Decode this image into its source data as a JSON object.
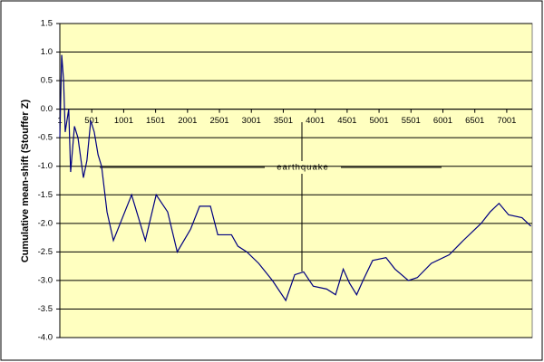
{
  "chart_data": {
    "type": "line",
    "y_label": "Cumulative mean-shift (Stouffer Z)",
    "annotation": "earthquake",
    "x": [
      1,
      30,
      60,
      85,
      140,
      170,
      230,
      285,
      370,
      425,
      485,
      540,
      600,
      655,
      740,
      840,
      1125,
      1340,
      1510,
      1690,
      1840,
      2050,
      2190,
      2360,
      2475,
      2690,
      2790,
      2930,
      3115,
      3330,
      3540,
      3680,
      3820,
      3970,
      4180,
      4320,
      4440,
      4540,
      4650,
      4750,
      4900,
      5110,
      5250,
      5460,
      5600,
      5820,
      6100,
      6320,
      6600,
      6740,
      6880,
      7030,
      7240,
      7380
    ],
    "series": [
      {
        "name": "Cumulative mean-shift",
        "color": "#000080",
        "values": [
          -0.5,
          0.95,
          0.5,
          -0.4,
          0.0,
          -1.1,
          -0.3,
          -0.5,
          -1.2,
          -0.9,
          -0.2,
          -0.4,
          -0.8,
          -1.0,
          -1.8,
          -2.3,
          -1.5,
          -2.3,
          -1.5,
          -1.8,
          -2.5,
          -2.1,
          -1.7,
          -1.7,
          -2.2,
          -2.2,
          -2.4,
          -2.5,
          -2.7,
          -3.0,
          -3.35,
          -2.9,
          -2.85,
          -3.1,
          -3.15,
          -3.25,
          -2.8,
          -3.05,
          -3.25,
          -3.0,
          -2.65,
          -2.6,
          -2.8,
          -3.0,
          -2.95,
          -2.7,
          -2.55,
          -2.3,
          -2.0,
          -1.8,
          -1.65,
          -1.85,
          -1.9,
          -2.05
        ]
      }
    ],
    "xlim": [
      1,
      7400
    ],
    "ylim": [
      -4.0,
      1.5
    ],
    "xticks": [
      1,
      501,
      1001,
      1501,
      2001,
      2501,
      3001,
      3501,
      4001,
      4501,
      5001,
      5501,
      6001,
      6501,
      7001
    ],
    "yticks": [
      1.5,
      {
        "value": 1.0,
        "label": "1.0"
      },
      0.5,
      {
        "value": 0.0,
        "label": "0.0"
      },
      -0.5,
      {
        "value": -1.0,
        "label": "-1.0"
      },
      -1.5,
      {
        "value": -2.0,
        "label": "-2.0"
      },
      -2.5,
      {
        "value": -3.0,
        "label": "-3.0"
      },
      -3.5,
      {
        "value": -4.0,
        "label": "-4.0"
      }
    ],
    "grid": true
  }
}
